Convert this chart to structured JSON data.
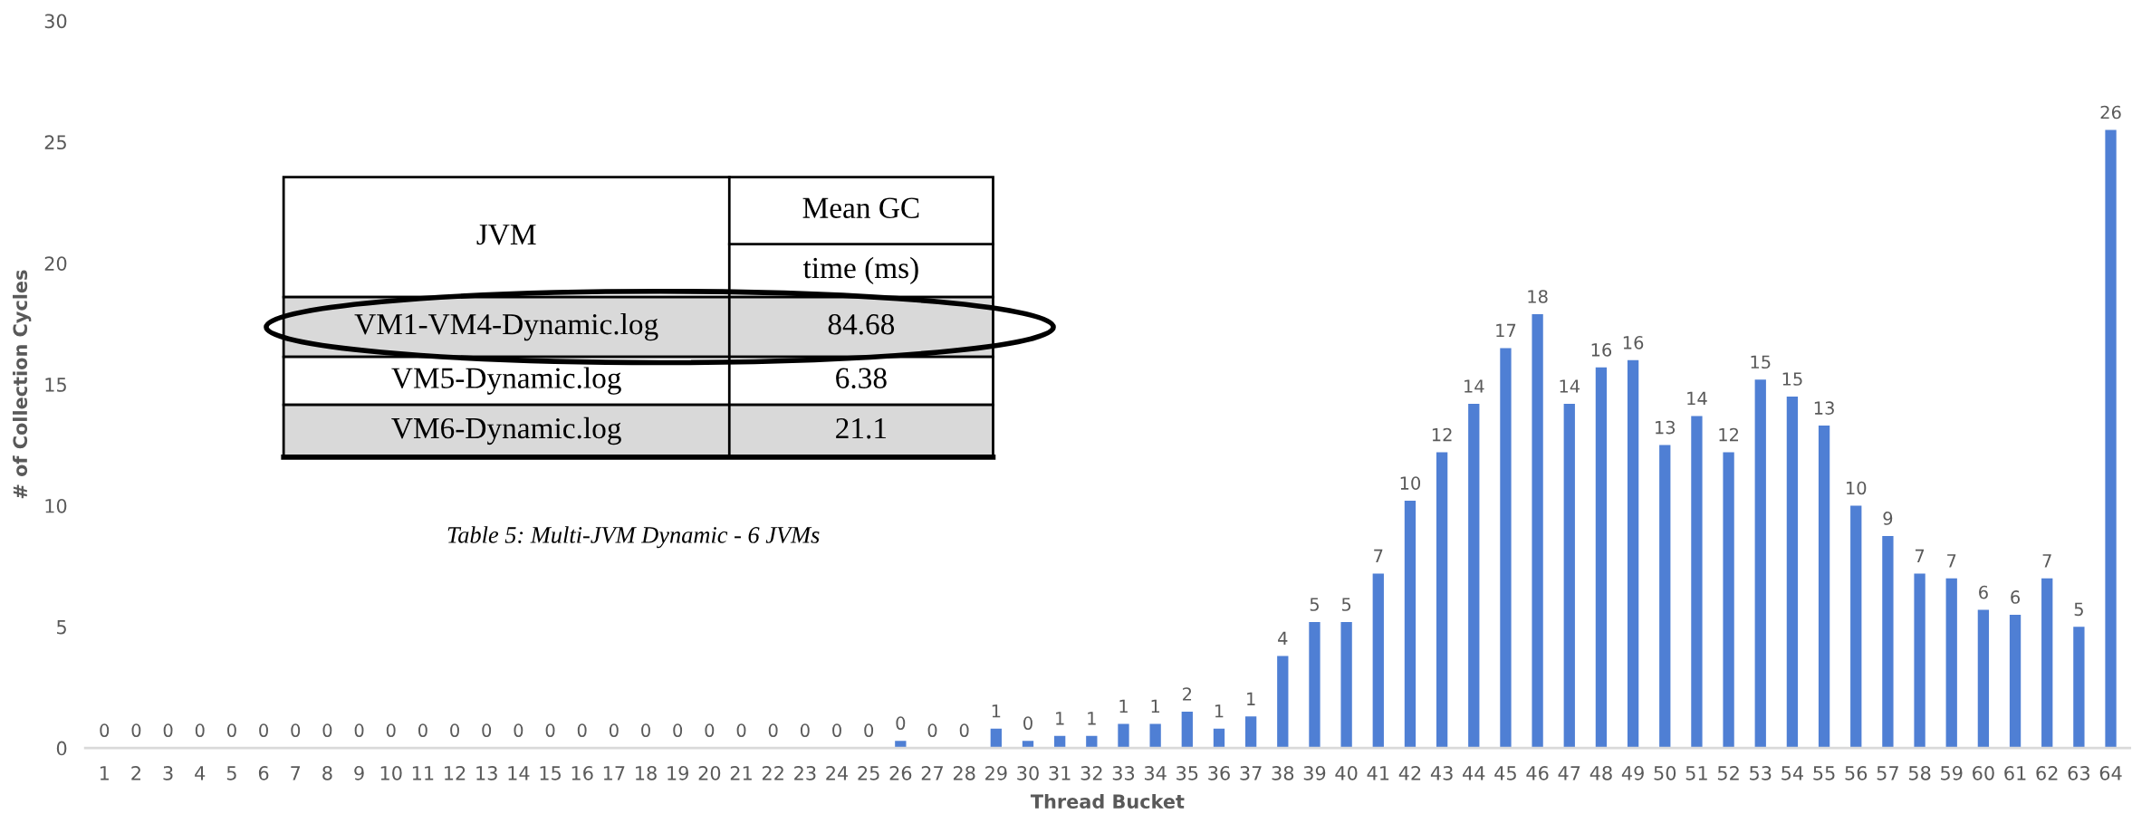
{
  "chart_data": {
    "type": "bar",
    "xlabel": "Thread Bucket",
    "ylabel": "# of Collection Cycles",
    "categories": [
      "1",
      "2",
      "3",
      "4",
      "5",
      "6",
      "7",
      "8",
      "9",
      "10",
      "11",
      "12",
      "13",
      "14",
      "15",
      "16",
      "17",
      "18",
      "19",
      "20",
      "21",
      "22",
      "23",
      "24",
      "25",
      "26",
      "27",
      "28",
      "29",
      "30",
      "31",
      "32",
      "33",
      "34",
      "35",
      "36",
      "37",
      "38",
      "39",
      "40",
      "41",
      "42",
      "43",
      "44",
      "45",
      "46",
      "47",
      "48",
      "49",
      "50",
      "51",
      "52",
      "53",
      "54",
      "55",
      "56",
      "57",
      "58",
      "59",
      "60",
      "61",
      "62",
      "63",
      "64"
    ],
    "values": [
      0,
      0,
      0,
      0,
      0,
      0,
      0,
      0,
      0,
      0,
      0,
      0,
      0,
      0,
      0,
      0,
      0,
      0,
      0,
      0,
      0,
      0,
      0,
      0,
      0,
      0.3,
      0,
      0,
      0.8,
      0.3,
      0.5,
      0.5,
      1.0,
      1.0,
      1.5,
      0.8,
      1.3,
      3.8,
      5.2,
      5.2,
      7.2,
      10.2,
      12.2,
      14.2,
      16.5,
      17.9,
      14.2,
      15.7,
      16.0,
      12.5,
      13.7,
      12.2,
      15.2,
      14.5,
      13.3,
      10.0,
      8.75,
      7.2,
      7.0,
      5.7,
      5.5,
      7.0,
      5.0,
      25.5
    ],
    "value_labels": [
      "0",
      "0",
      "0",
      "0",
      "0",
      "0",
      "0",
      "0",
      "0",
      "0",
      "0",
      "0",
      "0",
      "0",
      "0",
      "0",
      "0",
      "0",
      "0",
      "0",
      "0",
      "0",
      "0",
      "0",
      "0",
      "0",
      "0",
      "0",
      "1",
      "0",
      "1",
      "1",
      "1",
      "1",
      "2",
      "1",
      "1",
      "4",
      "5",
      "5",
      "7",
      "10",
      "12",
      "14",
      "17",
      "18",
      "14",
      "16",
      "16",
      "13",
      "14",
      "12",
      "15",
      "15",
      "13",
      "10",
      "9",
      "7",
      "7",
      "6",
      "6",
      "7",
      "5",
      "26"
    ],
    "color": "#4f7fd4",
    "ylim": [
      0,
      30
    ],
    "yticks": [
      0,
      5,
      10,
      15,
      20,
      25,
      30
    ],
    "grid": false,
    "annotations": [
      "JVM",
      "Mean GC",
      "time (ms)",
      "VM1-VM4-Dynamic.log",
      "84.68",
      "VM5-Dynamic.log",
      "6.38",
      "VM6-Dynamic.log",
      "21.1",
      "Table 5: Multi-JVM Dynamic - 6 JVMs"
    ]
  }
}
